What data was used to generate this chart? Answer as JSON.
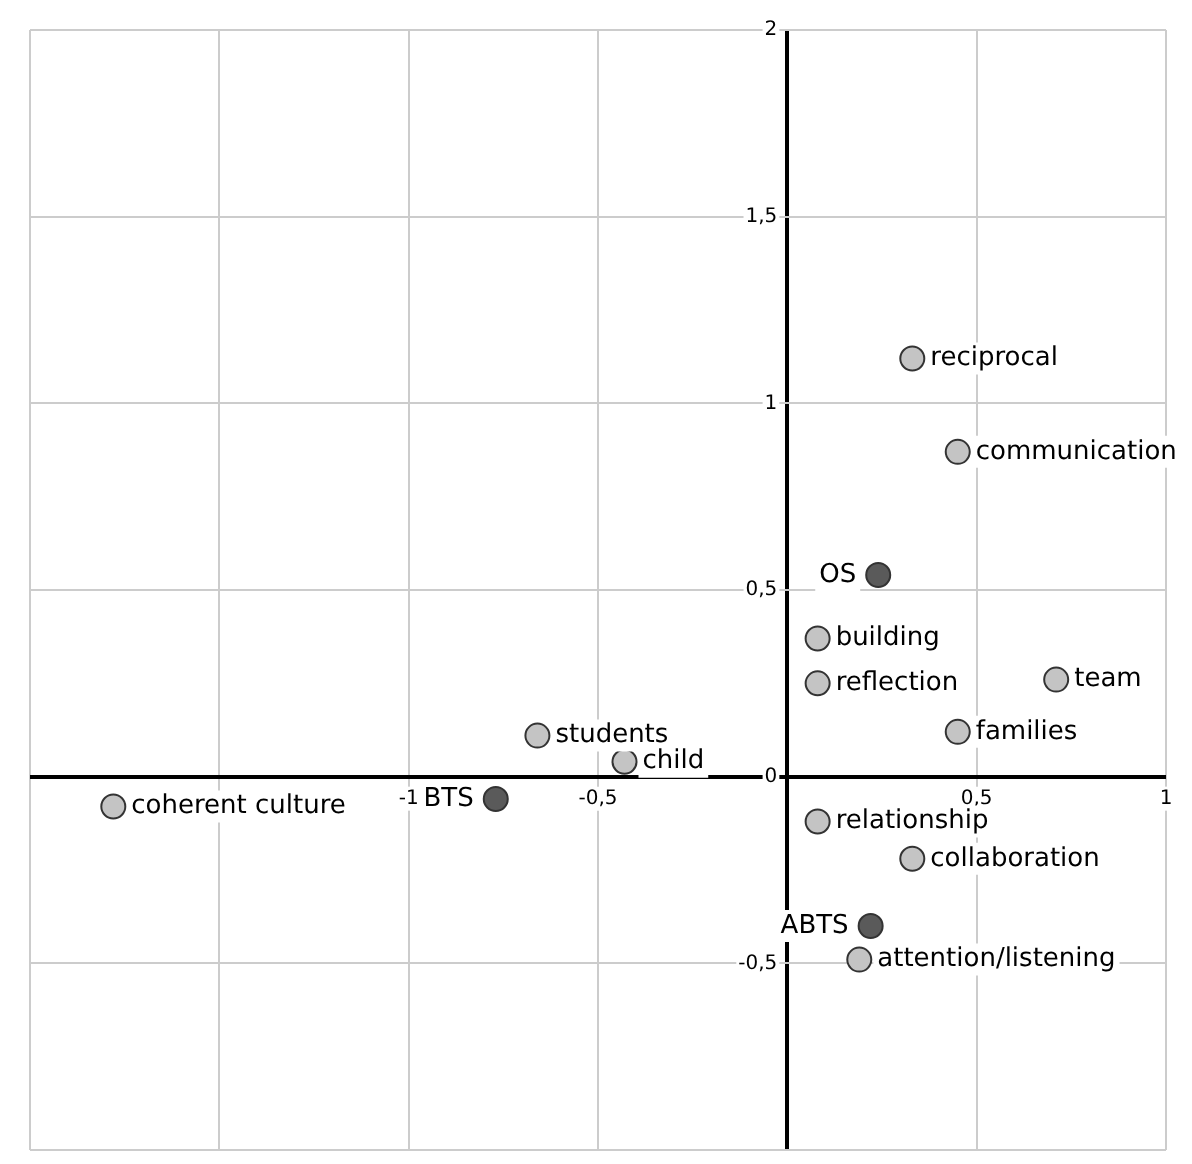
{
  "chart_data": {
    "type": "scatter",
    "marker": "circle",
    "grid": true,
    "legend": false,
    "xlim": [
      -2,
      1
    ],
    "ylim": [
      -1,
      2
    ],
    "xticks": [
      {
        "value": -2,
        "label": null
      },
      {
        "value": -1.5,
        "label": null
      },
      {
        "value": -1,
        "label": "-1"
      },
      {
        "value": -0.5,
        "label": "-0,5"
      },
      {
        "value": 0,
        "label": null
      },
      {
        "value": 0.5,
        "label": "0,5"
      },
      {
        "value": 1,
        "label": "1"
      }
    ],
    "yticks": [
      {
        "value": -1,
        "label": null
      },
      {
        "value": -0.5,
        "label": "-0,5"
      },
      {
        "value": 0,
        "label": "0"
      },
      {
        "value": 0.5,
        "label": "0,5"
      },
      {
        "value": 1,
        "label": "1"
      },
      {
        "value": 1.5,
        "label": "1,5"
      },
      {
        "value": 2,
        "label": "2"
      }
    ],
    "series": [
      {
        "color": "#c4c4c4",
        "x": [
          0.33,
          0.45,
          0.08,
          0.71,
          0.08,
          0.45,
          -0.66,
          -0.43,
          -1.78,
          0.08,
          0.33,
          0.19
        ],
        "values": [
          1.12,
          0.87,
          0.37,
          0.26,
          0.25,
          0.12,
          0.11,
          0.04,
          -0.08,
          -0.12,
          -0.22,
          -0.49
        ]
      },
      {
        "color": "#5a5a5a",
        "x": [
          0.24,
          -0.77,
          0.22
        ],
        "values": [
          0.54,
          -0.06,
          -0.4
        ]
      }
    ],
    "annotations": [
      {
        "text": "reciprocal",
        "x": 0.33,
        "y": 1.12
      },
      {
        "text": "communication",
        "x": 0.45,
        "y": 0.87
      },
      {
        "text": "building",
        "x": 0.08,
        "y": 0.37
      },
      {
        "text": "team",
        "x": 0.71,
        "y": 0.26
      },
      {
        "text": "reflection",
        "x": 0.08,
        "y": 0.25
      },
      {
        "text": "families",
        "x": 0.45,
        "y": 0.12
      },
      {
        "text": "students",
        "x": -0.66,
        "y": 0.11
      },
      {
        "text": "child",
        "x": -0.43,
        "y": 0.04
      },
      {
        "text": "coherent culture",
        "x": -1.78,
        "y": -0.08
      },
      {
        "text": "relationship",
        "x": 0.08,
        "y": -0.12
      },
      {
        "text": "collaboration",
        "x": 0.33,
        "y": -0.22
      },
      {
        "text": "attention/listening",
        "x": 0.19,
        "y": -0.49
      },
      {
        "text": "OS",
        "x": 0.24,
        "y": 0.54
      },
      {
        "text": "BTS",
        "x": -0.77,
        "y": -0.06
      },
      {
        "text": "ABTS",
        "x": 0.22,
        "y": -0.4
      }
    ]
  }
}
